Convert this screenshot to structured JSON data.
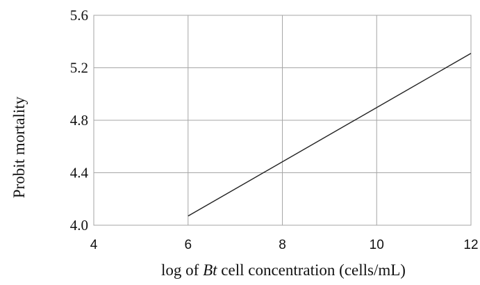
{
  "chart_data": {
    "type": "line",
    "title": "",
    "xlabel": {
      "prefix": "log of ",
      "italic": "Bt",
      "suffix": " cell concentration (cells/mL)"
    },
    "ylabel": "Probit mortality",
    "xlim": [
      4,
      12
    ],
    "ylim": [
      4.0,
      5.6
    ],
    "x_ticks": [
      4,
      6,
      8,
      10,
      12
    ],
    "x_tick_labels": [
      "4",
      "6",
      "8",
      "10",
      "12"
    ],
    "y_ticks": [
      4.0,
      4.4,
      4.8,
      5.2,
      5.6
    ],
    "y_tick_labels": [
      "4.0",
      "4.4",
      "4.8",
      "5.2",
      "5.6"
    ],
    "grid": true,
    "legend": "none",
    "series": [
      {
        "x": [
          6,
          12
        ],
        "y": [
          4.07,
          5.31
        ]
      }
    ],
    "colors": {
      "line": "#222222",
      "grid": "#a6a6a6"
    }
  }
}
